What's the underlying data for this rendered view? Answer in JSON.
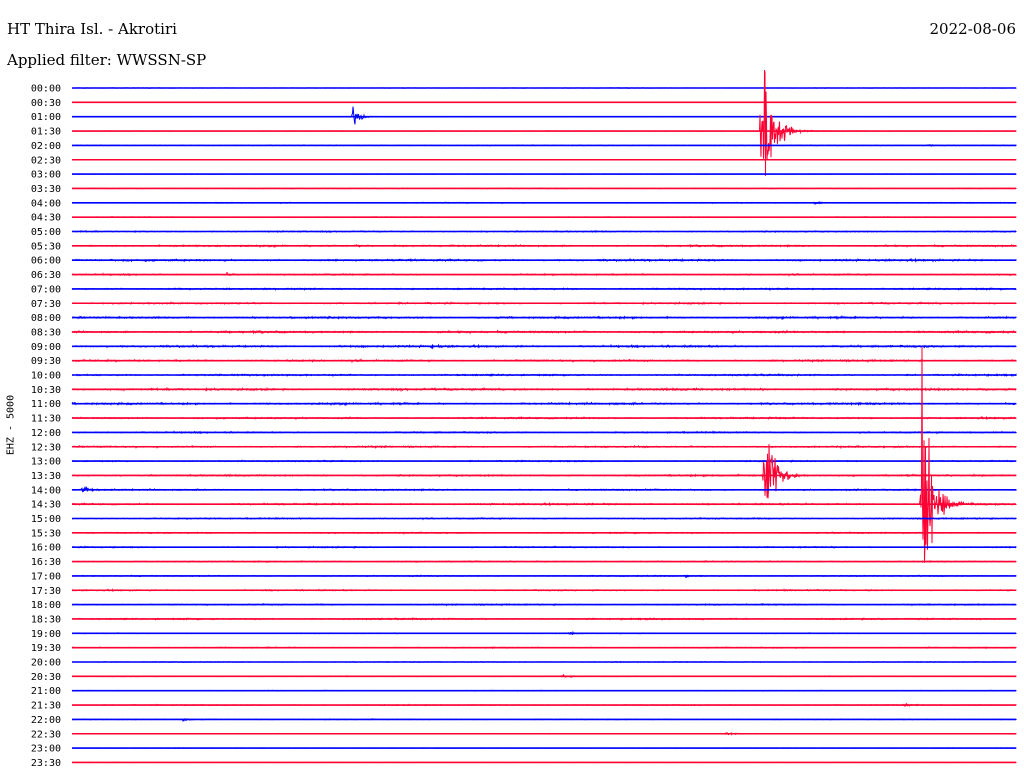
{
  "header": {
    "station": "HT Thira Isl. - Akrotiri",
    "filter": "Applied filter: WWSSN-SP",
    "date": "2022-08-06",
    "channel": "EHZ - 5000"
  },
  "colors": {
    "even_trace": "#0000ff",
    "odd_trace": "#ff0033",
    "background": "#ffffff"
  },
  "chart_data": {
    "type": "line",
    "title": "HT Thira Isl. - Akrotiri",
    "subtitle": "Applied filter: WWSSN-SP",
    "ylabel": "EHZ - 5000",
    "rows": [
      "00:00",
      "00:30",
      "01:00",
      "01:30",
      "02:00",
      "02:30",
      "03:00",
      "03:30",
      "04:00",
      "04:30",
      "05:00",
      "05:30",
      "06:00",
      "06:30",
      "07:00",
      "07:30",
      "08:00",
      "08:30",
      "09:00",
      "09:30",
      "10:00",
      "10:30",
      "11:00",
      "11:30",
      "12:00",
      "12:30",
      "13:00",
      "13:30",
      "14:00",
      "14:30",
      "15:00",
      "15:30",
      "16:00",
      "16:30",
      "17:00",
      "17:30",
      "18:00",
      "18:30",
      "19:00",
      "19:30",
      "20:00",
      "20:30",
      "21:00",
      "21:30",
      "22:00",
      "22:30",
      "23:00",
      "23:30"
    ],
    "x_minutes_per_row": 30,
    "noise_level": [
      0.3,
      0.2,
      0.3,
      0.3,
      0.5,
      0.2,
      0.3,
      0.4,
      0.6,
      0.5,
      0.8,
      1.0,
      1.2,
      0.9,
      1.0,
      1.0,
      1.2,
      1.2,
      1.2,
      1.1,
      1.0,
      1.3,
      1.2,
      1.0,
      0.9,
      1.0,
      0.8,
      1.0,
      0.9,
      1.0,
      0.8,
      0.8,
      0.8,
      0.7,
      0.7,
      0.8,
      0.8,
      0.9,
      0.5,
      0.7,
      0.5,
      0.5,
      0.5,
      0.6,
      0.5,
      0.4,
      0.3,
      0.2
    ],
    "events": [
      {
        "row": "01:00",
        "minute": 8.9,
        "amplitude": 20
      },
      {
        "row": "01:30",
        "minute": 21.9,
        "amplitude": 150
      },
      {
        "row": "01:30",
        "minute": 22.6,
        "amplitude": 8
      },
      {
        "row": "02:00",
        "minute": 27.2,
        "amplitude": 2
      },
      {
        "row": "04:00",
        "minute": 23.6,
        "amplitude": 2
      },
      {
        "row": "05:30",
        "minute": 9.0,
        "amplitude": 3
      },
      {
        "row": "06:30",
        "minute": 4.9,
        "amplitude": 3
      },
      {
        "row": "09:00",
        "minute": 11.4,
        "amplitude": 3
      },
      {
        "row": "13:30",
        "minute": 22.0,
        "amplitude": 80
      },
      {
        "row": "14:00",
        "minute": 0.3,
        "amplitude": 6
      },
      {
        "row": "14:30",
        "minute": 27.0,
        "amplitude": 200
      },
      {
        "row": "17:00",
        "minute": 19.5,
        "amplitude": 2
      },
      {
        "row": "19:00",
        "minute": 15.8,
        "amplitude": 2
      },
      {
        "row": "20:30",
        "minute": 15.6,
        "amplitude": 2
      },
      {
        "row": "21:30",
        "minute": 26.5,
        "amplitude": 2
      },
      {
        "row": "22:00",
        "minute": 3.5,
        "amplitude": 2
      },
      {
        "row": "22:30",
        "minute": 20.8,
        "amplitude": 2
      }
    ]
  }
}
